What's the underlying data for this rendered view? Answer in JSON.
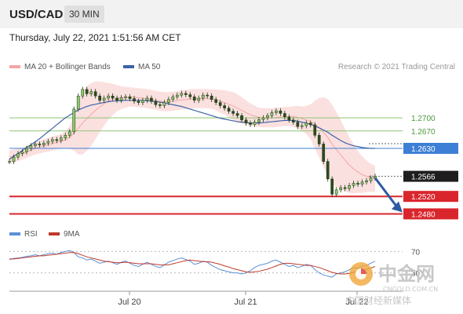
{
  "header": {
    "pair": "USD/CAD",
    "timeframe": "30 MIN"
  },
  "timestamp": "Thursday, July 22, 2021 1:51:56 AM CET",
  "legend": {
    "bb": "MA 20 + Bollinger Bands",
    "ma50": "MA 50",
    "credit": "Research © 2021 Trading Central"
  },
  "rsi_legend": {
    "rsi": "RSI",
    "ma": "9MA"
  },
  "colors": {
    "bb": "#f4a6a6",
    "ma50": "#3d63a8",
    "rsi": "#5b8fd6",
    "rsi_ma": "#c0392b",
    "support": "#d9262c",
    "resistance": "#8ec572",
    "pivot": "#3d7fd6",
    "arrow": "#2f5aa0"
  },
  "chart_data": [
    {
      "type": "line",
      "ylim": [
        1.247,
        1.279
      ],
      "x_ticks": [
        "Jul 20",
        "Jul 21",
        "Jul 22"
      ],
      "levels": [
        {
          "value": 1.27,
          "label": "1.2700",
          "kind": "resistance"
        },
        {
          "value": 1.267,
          "label": "1.2670",
          "kind": "resistance"
        },
        {
          "value": 1.263,
          "label": "1.2630",
          "kind": "pivot"
        },
        {
          "value": 1.2566,
          "label": "1.2566",
          "kind": "current"
        },
        {
          "value": 1.252,
          "label": "1.2520",
          "kind": "support"
        },
        {
          "value": 1.248,
          "label": "1.2480",
          "kind": "support"
        }
      ],
      "close": [
        1.26,
        1.261,
        1.2618,
        1.2622,
        1.263,
        1.2636,
        1.264,
        1.2638,
        1.2642,
        1.2646,
        1.265,
        1.2648,
        1.2654,
        1.266,
        1.2668,
        1.272,
        1.275,
        1.2765,
        1.2755,
        1.276,
        1.275,
        1.274,
        1.2745,
        1.275,
        1.2745,
        1.274,
        1.2746,
        1.2748,
        1.2744,
        1.2738,
        1.2735,
        1.274,
        1.2745,
        1.2738,
        1.273,
        1.2728,
        1.2735,
        1.2742,
        1.2748,
        1.2752,
        1.2756,
        1.2753,
        1.2748,
        1.274,
        1.2745,
        1.2752,
        1.275,
        1.2742,
        1.2735,
        1.2728,
        1.2722,
        1.2715,
        1.271,
        1.2705,
        1.2695,
        1.2688,
        1.2685,
        1.269,
        1.2696,
        1.27,
        1.2705,
        1.2712,
        1.2716,
        1.271,
        1.2702,
        1.2695,
        1.269,
        1.268,
        1.2682,
        1.2688,
        1.2684,
        1.266,
        1.264,
        1.26,
        1.256,
        1.2525,
        1.2535,
        1.254,
        1.2538,
        1.2545,
        1.255,
        1.2548,
        1.2553,
        1.2556,
        1.2562,
        1.2566
      ],
      "ma50": [
        1.2605,
        1.2612,
        1.2618,
        1.2625,
        1.2632,
        1.2638,
        1.2645,
        1.2652,
        1.266,
        1.2668,
        1.2676,
        1.2684,
        1.2692,
        1.27,
        1.2706,
        1.2712,
        1.2718,
        1.2722,
        1.2726,
        1.2729,
        1.2731,
        1.2733,
        1.2735,
        1.2737,
        1.2738,
        1.2739,
        1.2739,
        1.274,
        1.274,
        1.274,
        1.274,
        1.274,
        1.2739,
        1.2738,
        1.2737,
        1.2736,
        1.2734,
        1.2732,
        1.273,
        1.2728,
        1.2726,
        1.2723,
        1.272,
        1.2717,
        1.2714,
        1.2711,
        1.2708,
        1.2705,
        1.2702,
        1.2699,
        1.2697,
        1.2695,
        1.2693,
        1.2691,
        1.269,
        1.2689,
        1.2688,
        1.2688,
        1.2688,
        1.2689,
        1.269,
        1.2691,
        1.2692,
        1.2693,
        1.2694,
        1.2694,
        1.2694,
        1.2692,
        1.269,
        1.2688,
        1.2685,
        1.2681,
        1.2677,
        1.2672,
        1.2667,
        1.266,
        1.2654,
        1.2648,
        1.2643,
        1.2639,
        1.2636,
        1.2634,
        1.2632,
        1.2631,
        1.263,
        1.263
      ],
      "bb_mid": [
        1.261,
        1.2612,
        1.2615,
        1.2618,
        1.2622,
        1.2626,
        1.263,
        1.2633,
        1.2636,
        1.2638,
        1.2641,
        1.2644,
        1.2646,
        1.265,
        1.2655,
        1.2665,
        1.2676,
        1.2688,
        1.2698,
        1.2708,
        1.2717,
        1.2725,
        1.2732,
        1.2738,
        1.2742,
        1.2745,
        1.2746,
        1.2747,
        1.2748,
        1.2747,
        1.2746,
        1.2745,
        1.2744,
        1.2742,
        1.274,
        1.2738,
        1.2737,
        1.2737,
        1.2738,
        1.2739,
        1.2741,
        1.2742,
        1.2743,
        1.2744,
        1.2744,
        1.2744,
        1.2744,
        1.2743,
        1.2741,
        1.2738,
        1.2735,
        1.2731,
        1.2727,
        1.2722,
        1.2717,
        1.2712,
        1.2707,
        1.2704,
        1.2701,
        1.27,
        1.27,
        1.27,
        1.2701,
        1.2702,
        1.2703,
        1.2703,
        1.2703,
        1.2701,
        1.2698,
        1.2695,
        1.2691,
        1.2685,
        1.2677,
        1.2667,
        1.2655,
        1.264,
        1.2627,
        1.2615,
        1.2603,
        1.2592,
        1.2583,
        1.2576,
        1.257,
        1.2566,
        1.2563,
        1.256
      ],
      "bb_width": [
        0.0015,
        0.0015,
        0.0014,
        0.0014,
        0.0014,
        0.0014,
        0.0014,
        0.0015,
        0.0015,
        0.0016,
        0.0016,
        0.0016,
        0.0017,
        0.002,
        0.0026,
        0.004,
        0.006,
        0.0072,
        0.0074,
        0.0072,
        0.0066,
        0.0058,
        0.005,
        0.0042,
        0.0036,
        0.003,
        0.0026,
        0.0024,
        0.0022,
        0.0022,
        0.0022,
        0.0022,
        0.0022,
        0.0022,
        0.0022,
        0.0022,
        0.0022,
        0.0022,
        0.0022,
        0.0022,
        0.0022,
        0.0022,
        0.0022,
        0.0022,
        0.0022,
        0.0022,
        0.0022,
        0.0022,
        0.0024,
        0.0026,
        0.0028,
        0.003,
        0.0032,
        0.0032,
        0.003,
        0.0028,
        0.0026,
        0.0024,
        0.0022,
        0.0022,
        0.0022,
        0.0022,
        0.0022,
        0.0022,
        0.0022,
        0.0022,
        0.0024,
        0.0026,
        0.0028,
        0.0032,
        0.004,
        0.0054,
        0.0068,
        0.008,
        0.0088,
        0.009,
        0.0086,
        0.008,
        0.0072,
        0.0064,
        0.0056,
        0.0048,
        0.0042,
        0.0036,
        0.0032,
        0.003
      ]
    },
    {
      "type": "line",
      "ylim": [
        0,
        100
      ],
      "y_ticks": [
        "70",
        "30"
      ],
      "rsi": [
        55,
        57,
        58,
        59,
        61,
        62,
        64,
        62,
        64,
        66,
        67,
        65,
        68,
        70,
        72,
        68,
        60,
        58,
        54,
        56,
        52,
        48,
        50,
        52,
        49,
        46,
        50,
        52,
        48,
        44,
        42,
        46,
        50,
        46,
        42,
        40,
        45,
        50,
        53,
        56,
        58,
        55,
        52,
        46,
        48,
        52,
        50,
        44,
        40,
        36,
        34,
        32,
        30,
        30,
        28,
        30,
        34,
        40,
        44,
        46,
        48,
        52,
        54,
        50,
        46,
        42,
        44,
        40,
        42,
        46,
        44,
        36,
        30,
        26,
        24,
        22,
        28,
        30,
        32,
        36,
        40,
        38,
        42,
        44,
        48,
        52
      ],
      "rsi_ma": [
        56,
        56,
        57,
        58,
        59,
        60,
        61,
        62,
        62,
        63,
        64,
        65,
        66,
        67,
        68,
        68,
        66,
        63,
        60,
        58,
        56,
        54,
        52,
        51,
        50,
        49,
        49,
        50,
        49,
        48,
        47,
        47,
        47,
        47,
        46,
        45,
        45,
        45,
        47,
        49,
        51,
        53,
        54,
        53,
        52,
        51,
        51,
        50,
        48,
        46,
        43,
        41,
        38,
        36,
        34,
        32,
        31,
        32,
        33,
        35,
        37,
        40,
        43,
        46,
        48,
        48,
        47,
        46,
        45,
        44,
        44,
        42,
        40,
        37,
        34,
        31,
        29,
        28,
        28,
        29,
        31,
        33,
        35,
        37,
        39,
        42
      ]
    }
  ]
}
